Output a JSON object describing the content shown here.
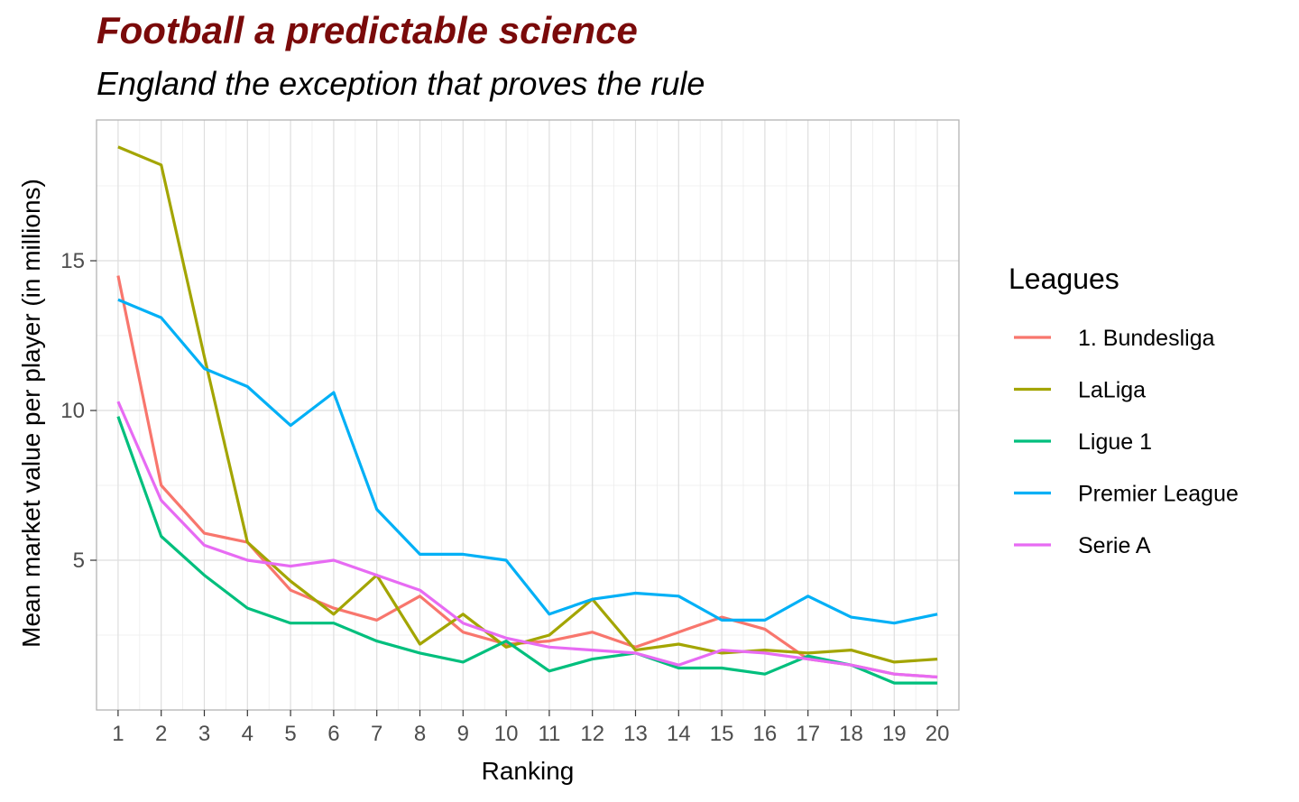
{
  "chart_data": {
    "type": "line",
    "title": "Football a predictable science",
    "subtitle": "England the exception that proves the rule",
    "xlabel": "Ranking",
    "ylabel": "Mean market value per player (in millions)",
    "x": [
      1,
      2,
      3,
      4,
      5,
      6,
      7,
      8,
      9,
      10,
      11,
      12,
      13,
      14,
      15,
      16,
      17,
      18,
      19,
      20
    ],
    "x_tick_labels": [
      "1",
      "2",
      "3",
      "4",
      "5",
      "6",
      "7",
      "8",
      "9",
      "10",
      "11",
      "12",
      "13",
      "14",
      "15",
      "16",
      "17",
      "18",
      "19",
      "20"
    ],
    "y_ticks": [
      5,
      10,
      15
    ],
    "y_tick_labels": [
      "5",
      "10",
      "15"
    ],
    "xlim": [
      0.5,
      20.5
    ],
    "ylim": [
      0,
      19.7
    ],
    "grid": true,
    "legend_title": "Leagues",
    "legend_position": "right",
    "series": [
      {
        "name": "1. Bundesliga",
        "color": "#F8766D",
        "values": [
          14.5,
          7.5,
          5.9,
          5.6,
          4.0,
          3.4,
          3.0,
          3.8,
          2.6,
          2.2,
          2.3,
          2.6,
          2.1,
          2.6,
          3.1,
          2.7,
          1.7,
          1.5,
          1.2,
          1.1
        ]
      },
      {
        "name": "LaLiga",
        "color": "#A3A500",
        "values": [
          18.8,
          18.2,
          11.8,
          5.6,
          4.3,
          3.2,
          4.5,
          2.2,
          3.2,
          2.1,
          2.5,
          3.7,
          2.0,
          2.2,
          1.9,
          2.0,
          1.9,
          2.0,
          1.6,
          1.7
        ]
      },
      {
        "name": "Ligue 1",
        "color": "#00BF7D",
        "values": [
          9.8,
          5.8,
          4.5,
          3.4,
          2.9,
          2.9,
          2.3,
          1.9,
          1.6,
          2.3,
          1.3,
          1.7,
          1.9,
          1.4,
          1.4,
          1.2,
          1.8,
          1.5,
          0.9,
          0.9
        ]
      },
      {
        "name": "Premier League",
        "color": "#00B0F6",
        "values": [
          13.7,
          13.1,
          11.4,
          10.8,
          9.5,
          10.6,
          6.7,
          5.2,
          5.2,
          5.0,
          3.2,
          3.7,
          3.9,
          3.8,
          3.0,
          3.0,
          3.8,
          3.1,
          2.9,
          3.2
        ]
      },
      {
        "name": "Serie A",
        "color": "#E76BF3",
        "values": [
          10.3,
          7.0,
          5.5,
          5.0,
          4.8,
          5.0,
          4.5,
          4.0,
          2.9,
          2.4,
          2.1,
          2.0,
          1.9,
          1.5,
          2.0,
          1.9,
          1.7,
          1.5,
          1.2,
          1.1
        ]
      }
    ]
  }
}
